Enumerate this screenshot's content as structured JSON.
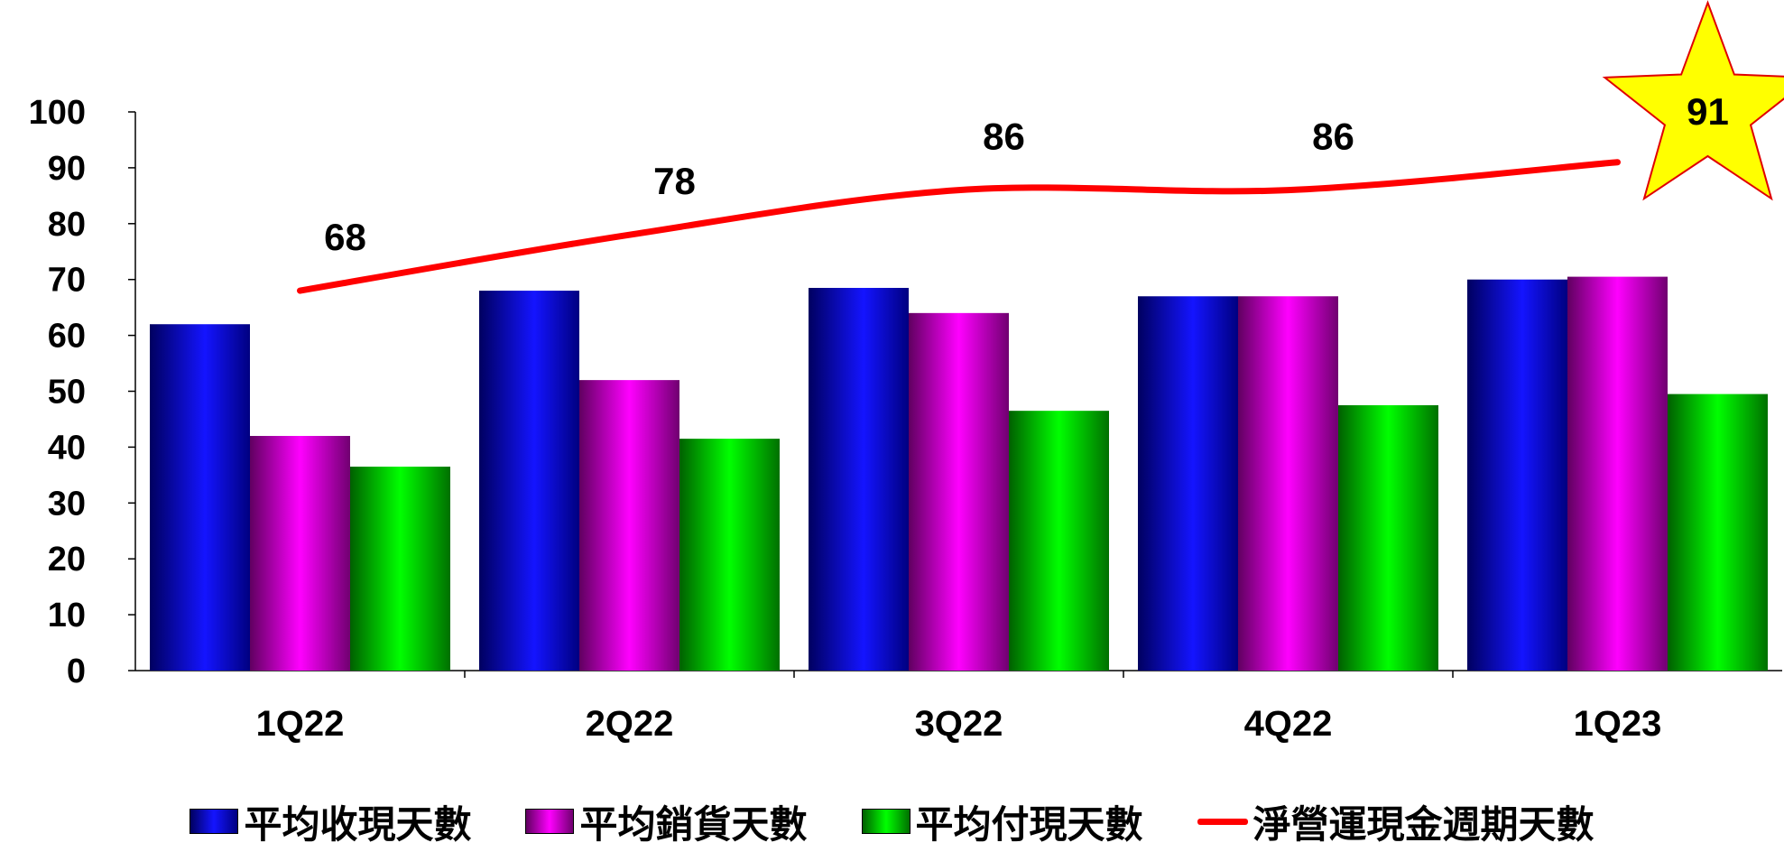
{
  "chart_data": {
    "type": "bar",
    "categories": [
      "1Q22",
      "2Q22",
      "3Q22",
      "4Q22",
      "1Q23"
    ],
    "series": [
      {
        "name": "平均收現天數",
        "values": [
          62,
          68,
          68.5,
          67,
          70
        ],
        "color": "#1010e0"
      },
      {
        "name": "平均銷貨天數",
        "values": [
          42,
          52,
          64,
          67,
          70.5
        ],
        "color": "#e010e0"
      },
      {
        "name": "平均付現天數",
        "values": [
          36.5,
          41.5,
          46.5,
          47.5,
          49.5
        ],
        "color": "#10e010"
      }
    ],
    "line_series": {
      "name": "淨營運現金週期天數",
      "values": [
        68,
        78,
        86,
        86,
        91
      ],
      "color": "#ff0000"
    },
    "data_labels": [
      "68",
      "78",
      "86",
      "86",
      "91"
    ],
    "highlight": {
      "index": 4,
      "shape": "star",
      "fill": "#ffff00",
      "stroke": "#e00000",
      "label_color": "#ff0000"
    },
    "yticks": [
      "0",
      "10",
      "20",
      "30",
      "40",
      "50",
      "60",
      "70",
      "80",
      "90",
      "100"
    ],
    "ylim": [
      0,
      100
    ],
    "grid": false,
    "legend_position": "bottom"
  }
}
